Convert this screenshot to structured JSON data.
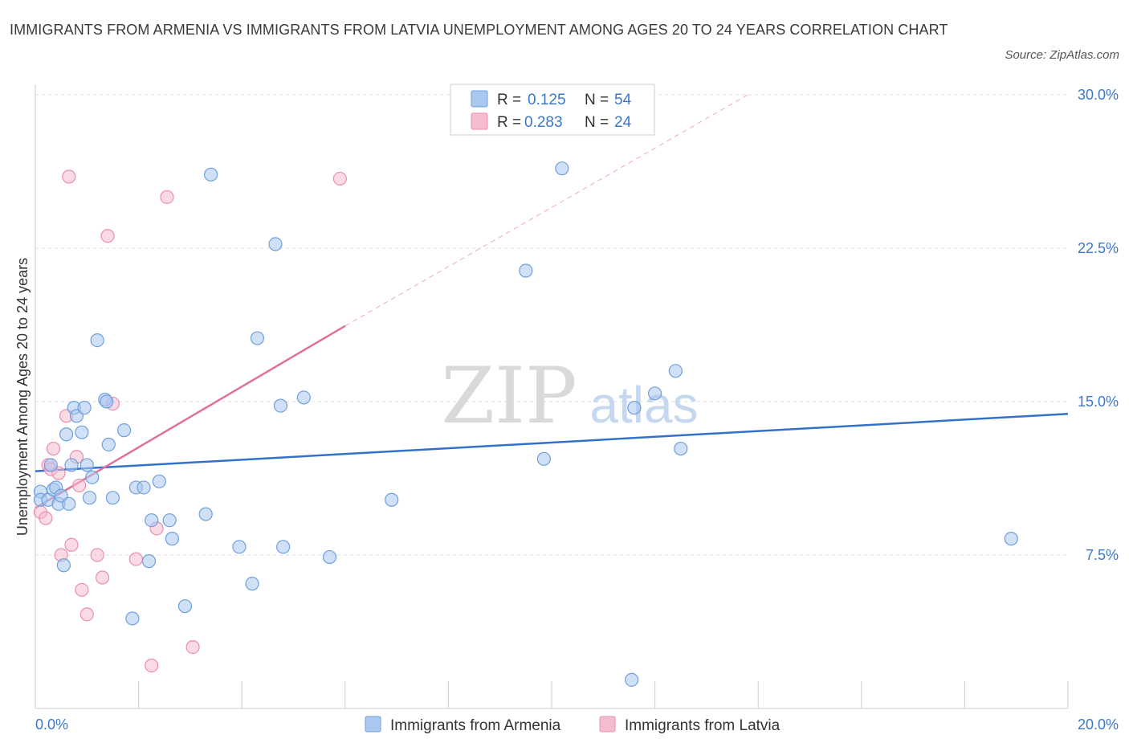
{
  "title": "IMMIGRANTS FROM ARMENIA VS IMMIGRANTS FROM LATVIA UNEMPLOYMENT AMONG AGES 20 TO 24 YEARS CORRELATION CHART",
  "source": "Source: ZipAtlas.com",
  "watermark": {
    "zip": "ZIP",
    "atlas": "atlas"
  },
  "colors": {
    "armenia_fill": "#aac8f0",
    "armenia_stroke": "#6f9fdc",
    "armenia_line": "#3471c9",
    "latvia_fill": "#f5bcd0",
    "latvia_stroke": "#e98fae",
    "latvia_line": "#e0709a",
    "grid": "#dddddd",
    "axis_text": "#3b78c9"
  },
  "chart_data": {
    "type": "scatter",
    "title": "IMMIGRANTS FROM ARMENIA VS IMMIGRANTS FROM LATVIA UNEMPLOYMENT AMONG AGES 20 TO 24 YEARS CORRELATION CHART",
    "xlabel": "",
    "ylabel": "Unemployment Among Ages 20 to 24 years",
    "xlim": [
      0,
      20
    ],
    "ylim": [
      0,
      30
    ],
    "x_tick_labels": [
      "0.0%",
      "20.0%"
    ],
    "y_ticks": [
      7.5,
      15.0,
      22.5,
      30.0
    ],
    "y_tick_labels": [
      "7.5%",
      "15.0%",
      "22.5%",
      "30.0%"
    ],
    "grid": true,
    "legend_stats": [
      {
        "r_label": "R =",
        "r_value": "0.125",
        "n_label": "N =",
        "n_value": "54"
      },
      {
        "r_label": "R =",
        "r_value": "0.283",
        "n_label": "N =",
        "n_value": "24"
      }
    ],
    "series": [
      {
        "name": "Immigrants from Armenia",
        "trend": {
          "x": [
            0,
            20
          ],
          "y": [
            11.6,
            14.4
          ]
        },
        "points": [
          [
            0.1,
            10.6
          ],
          [
            0.1,
            10.2
          ],
          [
            0.25,
            10.2
          ],
          [
            0.3,
            11.9
          ],
          [
            0.35,
            10.7
          ],
          [
            0.4,
            10.8
          ],
          [
            0.45,
            10.0
          ],
          [
            0.5,
            10.4
          ],
          [
            0.55,
            7.0
          ],
          [
            0.6,
            13.4
          ],
          [
            0.65,
            10.0
          ],
          [
            0.7,
            11.9
          ],
          [
            0.75,
            14.7
          ],
          [
            0.8,
            14.3
          ],
          [
            0.9,
            13.5
          ],
          [
            0.95,
            14.7
          ],
          [
            1.0,
            11.9
          ],
          [
            1.05,
            10.3
          ],
          [
            1.1,
            11.3
          ],
          [
            1.2,
            18.0
          ],
          [
            1.35,
            15.1
          ],
          [
            1.38,
            15.0
          ],
          [
            1.42,
            12.9
          ],
          [
            1.5,
            10.3
          ],
          [
            1.72,
            13.6
          ],
          [
            1.88,
            4.4
          ],
          [
            1.95,
            10.8
          ],
          [
            2.1,
            10.8
          ],
          [
            2.2,
            7.2
          ],
          [
            2.25,
            9.2
          ],
          [
            2.4,
            11.1
          ],
          [
            2.6,
            9.2
          ],
          [
            2.65,
            8.3
          ],
          [
            2.9,
            5.0
          ],
          [
            3.3,
            9.5
          ],
          [
            3.4,
            26.1
          ],
          [
            3.95,
            7.9
          ],
          [
            4.2,
            6.1
          ],
          [
            4.3,
            18.1
          ],
          [
            4.65,
            22.7
          ],
          [
            4.75,
            14.8
          ],
          [
            4.8,
            7.9
          ],
          [
            5.2,
            15.2
          ],
          [
            5.7,
            7.4
          ],
          [
            6.9,
            10.2
          ],
          [
            9.5,
            21.4
          ],
          [
            9.85,
            12.2
          ],
          [
            10.2,
            26.4
          ],
          [
            11.55,
            1.4
          ],
          [
            11.6,
            14.7
          ],
          [
            12.0,
            15.4
          ],
          [
            12.4,
            16.5
          ],
          [
            12.5,
            12.7
          ],
          [
            18.9,
            8.3
          ]
        ]
      },
      {
        "name": "Immigrants from Latvia",
        "trend": {
          "x": [
            0,
            6.0
          ],
          "y": [
            9.8,
            18.7
          ]
        },
        "trend_extension": {
          "x": [
            6.0,
            13.8
          ],
          "y": [
            18.7,
            30.0
          ]
        },
        "points": [
          [
            0.1,
            9.6
          ],
          [
            0.2,
            9.3
          ],
          [
            0.25,
            11.9
          ],
          [
            0.3,
            11.7
          ],
          [
            0.35,
            12.7
          ],
          [
            0.45,
            11.5
          ],
          [
            0.5,
            7.5
          ],
          [
            0.6,
            14.3
          ],
          [
            0.65,
            26.0
          ],
          [
            0.7,
            8.0
          ],
          [
            0.8,
            12.3
          ],
          [
            0.85,
            10.9
          ],
          [
            0.9,
            5.8
          ],
          [
            1.0,
            4.6
          ],
          [
            1.2,
            7.5
          ],
          [
            1.3,
            6.4
          ],
          [
            1.4,
            23.1
          ],
          [
            1.5,
            14.9
          ],
          [
            1.95,
            7.3
          ],
          [
            2.25,
            2.1
          ],
          [
            2.35,
            8.8
          ],
          [
            2.55,
            25.0
          ],
          [
            3.05,
            3.0
          ],
          [
            5.9,
            25.9
          ]
        ]
      }
    ]
  }
}
